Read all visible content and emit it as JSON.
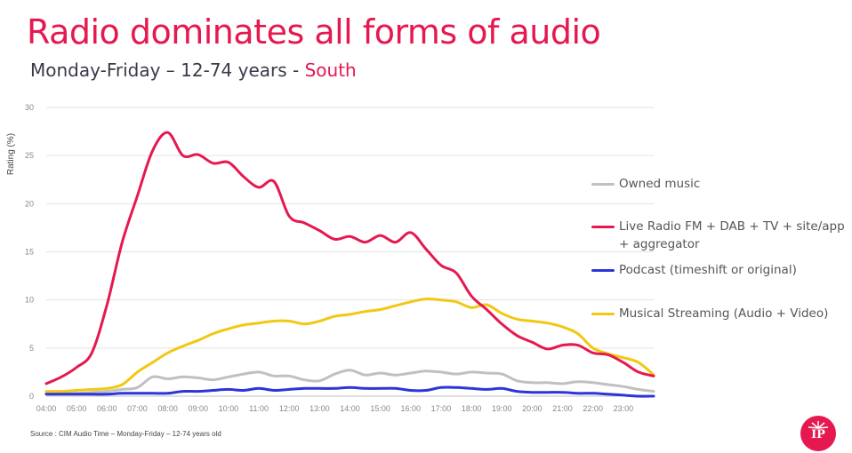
{
  "header": {
    "title": "Radio dominates all forms of audio",
    "subtitle_main": "Monday-Friday – 12-74 years - ",
    "subtitle_region": "South"
  },
  "footer": {
    "source": "Source : CIM Audio Time – Monday-Friday – 12-74 years old",
    "logo_text": "IP"
  },
  "colors": {
    "accent": "#e5194f",
    "owned_music": "#c0c0c0",
    "live_radio": "#e5194f",
    "podcast": "#2b35d9",
    "musical_streaming": "#f2c811"
  },
  "chart_data": {
    "type": "line",
    "ylabel": "Rating (%)",
    "xlabel": "",
    "ylim": [
      0,
      30
    ],
    "yticks": [
      0,
      5,
      10,
      15,
      20,
      25,
      30
    ],
    "xlim": [
      4.0,
      24.0
    ],
    "xtick_labels": [
      "04:00",
      "05:00",
      "06:00",
      "07:00",
      "08:00",
      "09:00",
      "10:00",
      "11:00",
      "12:00",
      "13:00",
      "14:00",
      "15:00",
      "16:00",
      "17:00",
      "18:00",
      "19:00",
      "20:00",
      "21:00",
      "22:00",
      "23:00"
    ],
    "grid": "horizontal",
    "legend_position": "right",
    "x": [
      4.0,
      4.5,
      5.0,
      5.5,
      6.0,
      6.5,
      7.0,
      7.5,
      8.0,
      8.5,
      9.0,
      9.5,
      10.0,
      10.5,
      11.0,
      11.5,
      12.0,
      12.5,
      13.0,
      13.5,
      14.0,
      14.5,
      15.0,
      15.5,
      16.0,
      16.5,
      17.0,
      17.5,
      18.0,
      18.5,
      19.0,
      19.5,
      20.0,
      20.5,
      21.0,
      21.5,
      22.0,
      22.5,
      23.0,
      23.5,
      24.0
    ],
    "series": [
      {
        "name": "Owned music",
        "values": [
          0.3,
          0.3,
          0.3,
          0.4,
          0.5,
          0.7,
          0.9,
          2.0,
          1.8,
          2.0,
          1.9,
          1.7,
          2.0,
          2.3,
          2.5,
          2.1,
          2.1,
          1.7,
          1.6,
          2.3,
          2.7,
          2.2,
          2.4,
          2.2,
          2.4,
          2.6,
          2.5,
          2.3,
          2.5,
          2.4,
          2.3,
          1.6,
          1.4,
          1.4,
          1.3,
          1.5,
          1.4,
          1.2,
          1.0,
          0.7,
          0.5
        ]
      },
      {
        "name": "Live Radio FM + DAB + TV + site/app + aggregator",
        "values": [
          1.3,
          2.0,
          3.0,
          4.5,
          9.5,
          16.0,
          20.8,
          25.5,
          27.4,
          25.0,
          25.1,
          24.2,
          24.3,
          22.8,
          21.7,
          22.3,
          18.7,
          18.0,
          17.2,
          16.3,
          16.6,
          16.0,
          16.7,
          16.0,
          17.0,
          15.3,
          13.6,
          12.8,
          10.4,
          9.0,
          7.5,
          6.3,
          5.6,
          4.9,
          5.3,
          5.3,
          4.5,
          4.3,
          3.5,
          2.5,
          2.1
        ]
      },
      {
        "name": "Podcast (timeshift or original)",
        "values": [
          0.2,
          0.2,
          0.2,
          0.2,
          0.2,
          0.3,
          0.3,
          0.3,
          0.3,
          0.5,
          0.5,
          0.6,
          0.7,
          0.6,
          0.8,
          0.6,
          0.7,
          0.8,
          0.8,
          0.8,
          0.9,
          0.8,
          0.8,
          0.8,
          0.6,
          0.6,
          0.9,
          0.9,
          0.8,
          0.7,
          0.8,
          0.5,
          0.4,
          0.4,
          0.4,
          0.3,
          0.3,
          0.2,
          0.1,
          0.0,
          0.0
        ]
      },
      {
        "name": "Musical Streaming (Audio + Video)",
        "values": [
          0.5,
          0.5,
          0.6,
          0.7,
          0.8,
          1.2,
          2.5,
          3.5,
          4.5,
          5.2,
          5.8,
          6.5,
          7.0,
          7.4,
          7.6,
          7.8,
          7.8,
          7.5,
          7.8,
          8.3,
          8.5,
          8.8,
          9.0,
          9.4,
          9.8,
          10.1,
          10.0,
          9.8,
          9.2,
          9.5,
          8.6,
          8.0,
          7.8,
          7.6,
          7.2,
          6.5,
          5.0,
          4.4,
          4.0,
          3.5,
          2.2
        ]
      }
    ]
  }
}
